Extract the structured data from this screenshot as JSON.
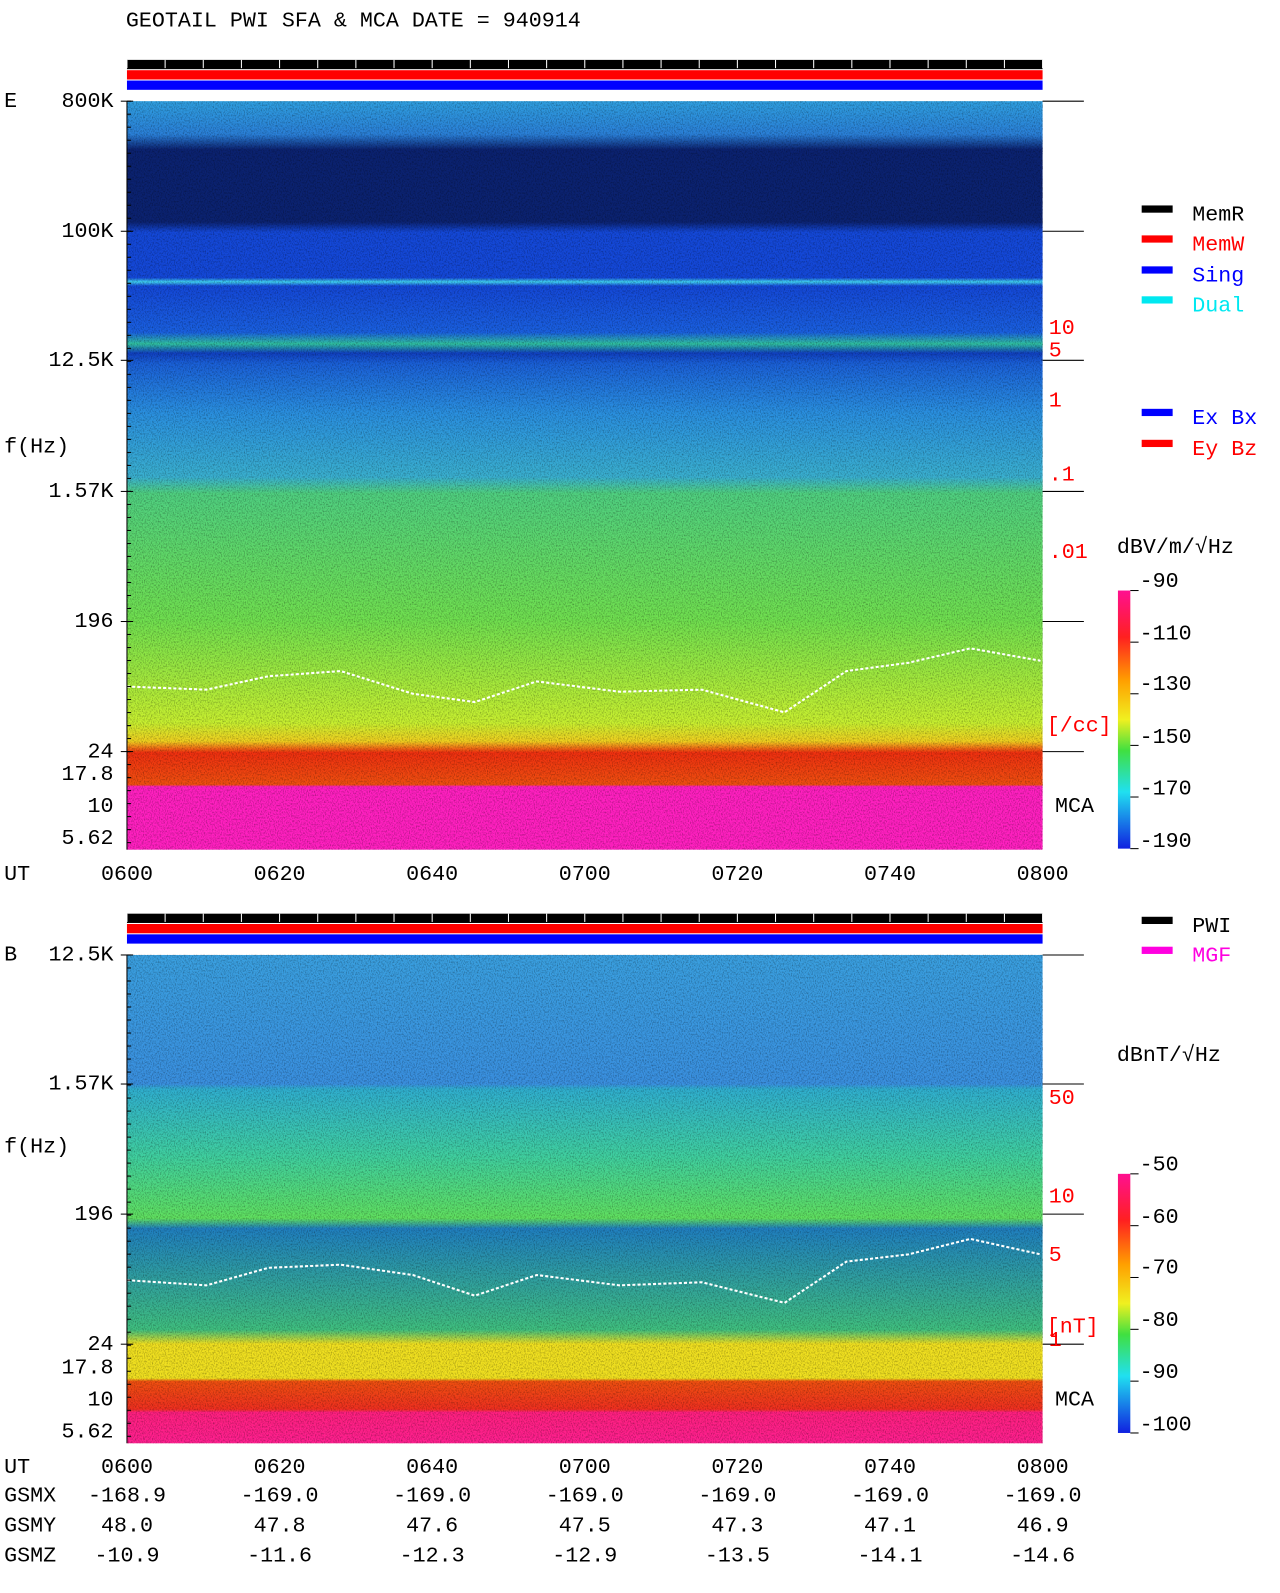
{
  "header": {
    "title": "GEOTAIL  PWI SFA & MCA   DATE = 940914"
  },
  "panels": [
    {
      "label": "E",
      "y_axis_label": "f(Hz)",
      "freq_ticks": [
        "800K",
        "100K",
        "12.5K",
        "1.57K",
        "196",
        "24",
        "17.8",
        "10",
        "5.62"
      ],
      "time_label": "UT",
      "time_ticks": [
        "0600",
        "0620",
        "0640",
        "0700",
        "0720",
        "0740",
        "0800"
      ],
      "density_ticks": [
        "10",
        "5",
        "1",
        ".1",
        ".01"
      ],
      "density_label": "[/cc]",
      "mca_label": "MCA",
      "legend": [
        {
          "label": "MemR",
          "color": "#000000"
        },
        {
          "label": "MemW",
          "color": "#ff0000"
        },
        {
          "label": "Sing",
          "color": "#0000ff"
        },
        {
          "label": "Dual",
          "color": "#00e8f0"
        }
      ],
      "legend2": [
        {
          "label": "Ex Bx",
          "color": "#0000ff"
        },
        {
          "label": "Ey Bz",
          "color": "#ff0000"
        }
      ],
      "colorbar": {
        "unit": "dBV/m/√Hz",
        "ticks": [
          "-90",
          "-110",
          "-130",
          "-150",
          "-170",
          "-190"
        ]
      }
    },
    {
      "label": "B",
      "y_axis_label": "f(Hz)",
      "freq_ticks": [
        "12.5K",
        "1.57K",
        "196",
        "24",
        "17.8",
        "10",
        "5.62"
      ],
      "time_label": "UT",
      "time_ticks": [
        "0600",
        "0620",
        "0640",
        "0700",
        "0720",
        "0740",
        "0800"
      ],
      "density_ticks": [
        "50",
        "10",
        "5",
        "1"
      ],
      "density_label": "[nT]",
      "mca_label": "MCA",
      "legend": [
        {
          "label": "PWI",
          "color": "#000000"
        },
        {
          "label": "MGF",
          "color": "#ff00e0"
        }
      ],
      "legend2": [],
      "colorbar": {
        "unit": "dBnT/√Hz",
        "ticks": [
          "-50",
          "-60",
          "-70",
          "-80",
          "-90",
          "-100"
        ]
      }
    }
  ],
  "orbit": {
    "rows": [
      {
        "label": "GSMX",
        "values": [
          "-168.9",
          "-169.0",
          "-169.0",
          "-169.0",
          "-169.0",
          "-169.0",
          "-169.0"
        ]
      },
      {
        "label": "GSMY",
        "values": [
          "48.0",
          "47.8",
          "47.6",
          "47.5",
          "47.3",
          "47.1",
          "46.9"
        ]
      },
      {
        "label": "GSMZ",
        "values": [
          "-10.9",
          "-11.6",
          "-12.3",
          "-12.9",
          "-13.5",
          "-14.1",
          "-14.6"
        ]
      }
    ]
  }
}
